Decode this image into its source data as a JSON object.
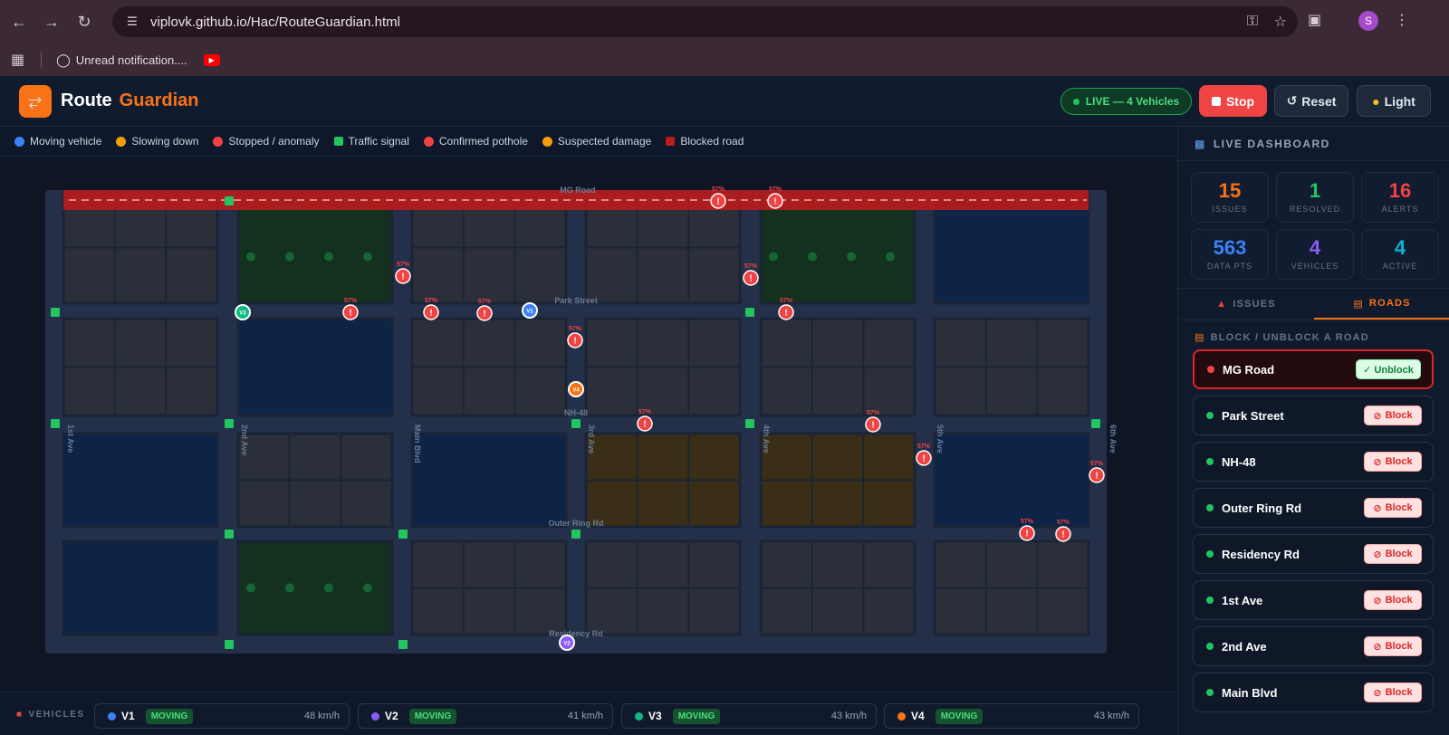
{
  "browser": {
    "url": "viplovk.github.io/Hac/RouteGuardian.html",
    "bookmark": "Unread notification....",
    "profile_initial": "S"
  },
  "header": {
    "title_main": "Route",
    "title_accent": "Guardian",
    "live_label": "LIVE — 4 Vehicles",
    "stop_label": "Stop",
    "reset_label": "Reset",
    "light_label": "Light"
  },
  "legend": [
    {
      "label": "Moving vehicle",
      "color": "#3b82f6",
      "shape": "dot"
    },
    {
      "label": "Slowing down",
      "color": "#f59e0b",
      "shape": "dot"
    },
    {
      "label": "Stopped / anomaly",
      "color": "#ef4444",
      "shape": "dot"
    },
    {
      "label": "Traffic signal",
      "color": "#22c55e",
      "shape": "square"
    },
    {
      "label": "Confirmed pothole",
      "color": "#ef4444",
      "shape": "dot"
    },
    {
      "label": "Suspected damage",
      "color": "#f59e0b",
      "shape": "dot"
    },
    {
      "label": "Blocked road",
      "color": "#b91c1c",
      "shape": "square"
    }
  ],
  "map": {
    "road_labels": [
      "MG Road",
      "Park Street",
      "NH-48",
      "Outer Ring Rd",
      "Residency Rd",
      "1st Ave",
      "2nd Ave",
      "Main Blvd",
      "3rd Ave",
      "4th Ave",
      "5th Ave",
      "6th Ave"
    ],
    "pothole_label": "57%",
    "pothole_glyph": "!",
    "vehicle_markers": [
      "V1",
      "V2",
      "V3",
      "V4"
    ]
  },
  "vehicles_bar": {
    "title": "VEHICLES",
    "vehicles": [
      {
        "id": "V1",
        "status": "MOVING",
        "speed": "48 km/h",
        "color": "#3b82f6"
      },
      {
        "id": "V2",
        "status": "MOVING",
        "speed": "41 km/h",
        "color": "#8b5cf6"
      },
      {
        "id": "V3",
        "status": "MOVING",
        "speed": "43 km/h",
        "color": "#10b981"
      },
      {
        "id": "V4",
        "status": "MOVING",
        "speed": "43 km/h",
        "color": "#f97316"
      }
    ]
  },
  "dashboard": {
    "title": "LIVE DASHBOARD",
    "stats": [
      {
        "value": "15",
        "label": "ISSUES",
        "color": "#f97316"
      },
      {
        "value": "1",
        "label": "RESOLVED",
        "color": "#22c55e"
      },
      {
        "value": "16",
        "label": "ALERTS",
        "color": "#ef4444"
      },
      {
        "value": "563",
        "label": "DATA PTS",
        "color": "#3b82f6"
      },
      {
        "value": "4",
        "label": "VEHICLES",
        "color": "#8b5cf6"
      },
      {
        "value": "4",
        "label": "ACTIVE",
        "color": "#06b6d4"
      }
    ],
    "tabs": [
      "ISSUES",
      "ROADS"
    ],
    "roads_header": "BLOCK / UNBLOCK A ROAD",
    "roads": [
      {
        "name": "MG Road",
        "action": "✓ Unblock",
        "blocked": true
      },
      {
        "name": "Park Street",
        "action": "Block",
        "blocked": false
      },
      {
        "name": "NH-48",
        "action": "Block",
        "blocked": false
      },
      {
        "name": "Outer Ring Rd",
        "action": "Block",
        "blocked": false
      },
      {
        "name": "Residency Rd",
        "action": "Block",
        "blocked": false
      },
      {
        "name": "1st Ave",
        "action": "Block",
        "blocked": false
      },
      {
        "name": "2nd Ave",
        "action": "Block",
        "blocked": false
      },
      {
        "name": "Main Blvd",
        "action": "Block",
        "blocked": false
      }
    ]
  }
}
